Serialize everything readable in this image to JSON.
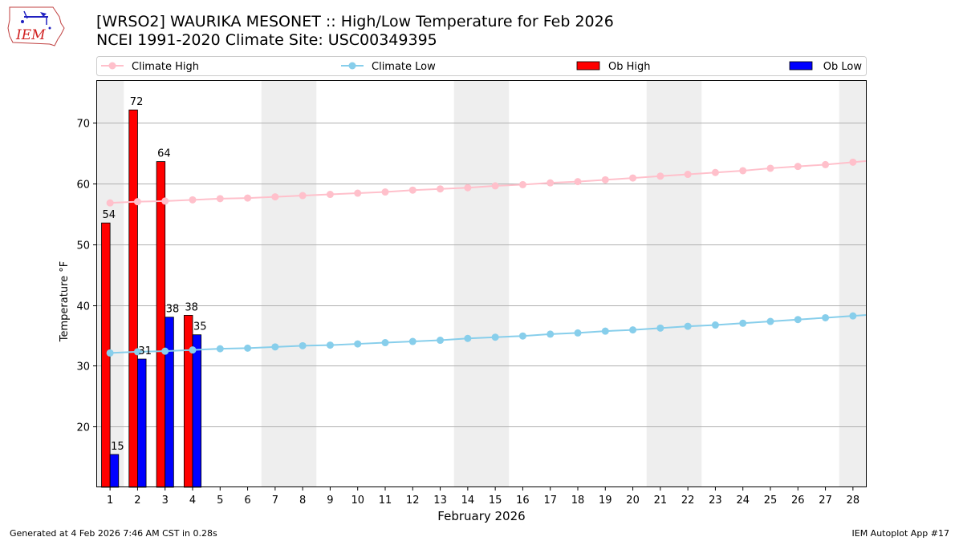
{
  "header": {
    "title": "[WRSO2] WAURIKA MESONET :: High/Low Temperature for Feb 2026",
    "subtitle": "NCEI 1991-2020 Climate Site: USC00349395"
  },
  "logo": {
    "text": "IEM",
    "icon": "iem-iowa-logo-icon"
  },
  "footer": {
    "left": "Generated at 4 Feb 2026 7:46 AM CST in 0.28s",
    "right": "IEM Autoplot App #17"
  },
  "chart_data": {
    "type": "bar",
    "xlabel": "February 2026",
    "ylabel": "Temperature °F",
    "ylim": [
      10,
      77
    ],
    "yticks": [
      20,
      30,
      40,
      50,
      60,
      70
    ],
    "days": [
      1,
      2,
      3,
      4,
      5,
      6,
      7,
      8,
      9,
      10,
      11,
      12,
      13,
      14,
      15,
      16,
      17,
      18,
      19,
      20,
      21,
      22,
      23,
      24,
      25,
      26,
      27,
      28
    ],
    "weekend_bands": [
      [
        1,
        1
      ],
      [
        7,
        8
      ],
      [
        14,
        15
      ],
      [
        21,
        22
      ],
      [
        28,
        28
      ]
    ],
    "grid": "horizontal",
    "legend_placement": "top",
    "series": [
      {
        "name": "Climate High",
        "kind": "line",
        "color": "#ffc0cb",
        "values": [
          56.8,
          57.0,
          57.1,
          57.3,
          57.5,
          57.6,
          57.8,
          58.0,
          58.2,
          58.4,
          58.6,
          58.9,
          59.1,
          59.3,
          59.6,
          59.8,
          60.1,
          60.3,
          60.6,
          60.9,
          61.2,
          61.5,
          61.8,
          62.1,
          62.5,
          62.8,
          63.1,
          63.5
        ]
      },
      {
        "name": "Climate Low",
        "kind": "line",
        "color": "#87ceeb",
        "values": [
          32.1,
          32.3,
          32.4,
          32.6,
          32.8,
          32.9,
          33.1,
          33.3,
          33.4,
          33.6,
          33.8,
          34.0,
          34.2,
          34.5,
          34.7,
          34.9,
          35.2,
          35.4,
          35.7,
          35.9,
          36.2,
          36.5,
          36.7,
          37.0,
          37.3,
          37.6,
          37.9,
          38.2
        ]
      },
      {
        "name": "Ob High",
        "kind": "bar",
        "color": "#ff0000",
        "values": [
          53.5,
          72.1,
          63.6,
          38.3
        ],
        "labels": [
          "54",
          "72",
          "64",
          "38"
        ]
      },
      {
        "name": "Ob Low",
        "kind": "bar",
        "color": "#0000ff",
        "values": [
          15.4,
          31.1,
          38.0,
          35.1
        ],
        "labels": [
          "15",
          "31",
          "38",
          "35"
        ]
      }
    ]
  }
}
